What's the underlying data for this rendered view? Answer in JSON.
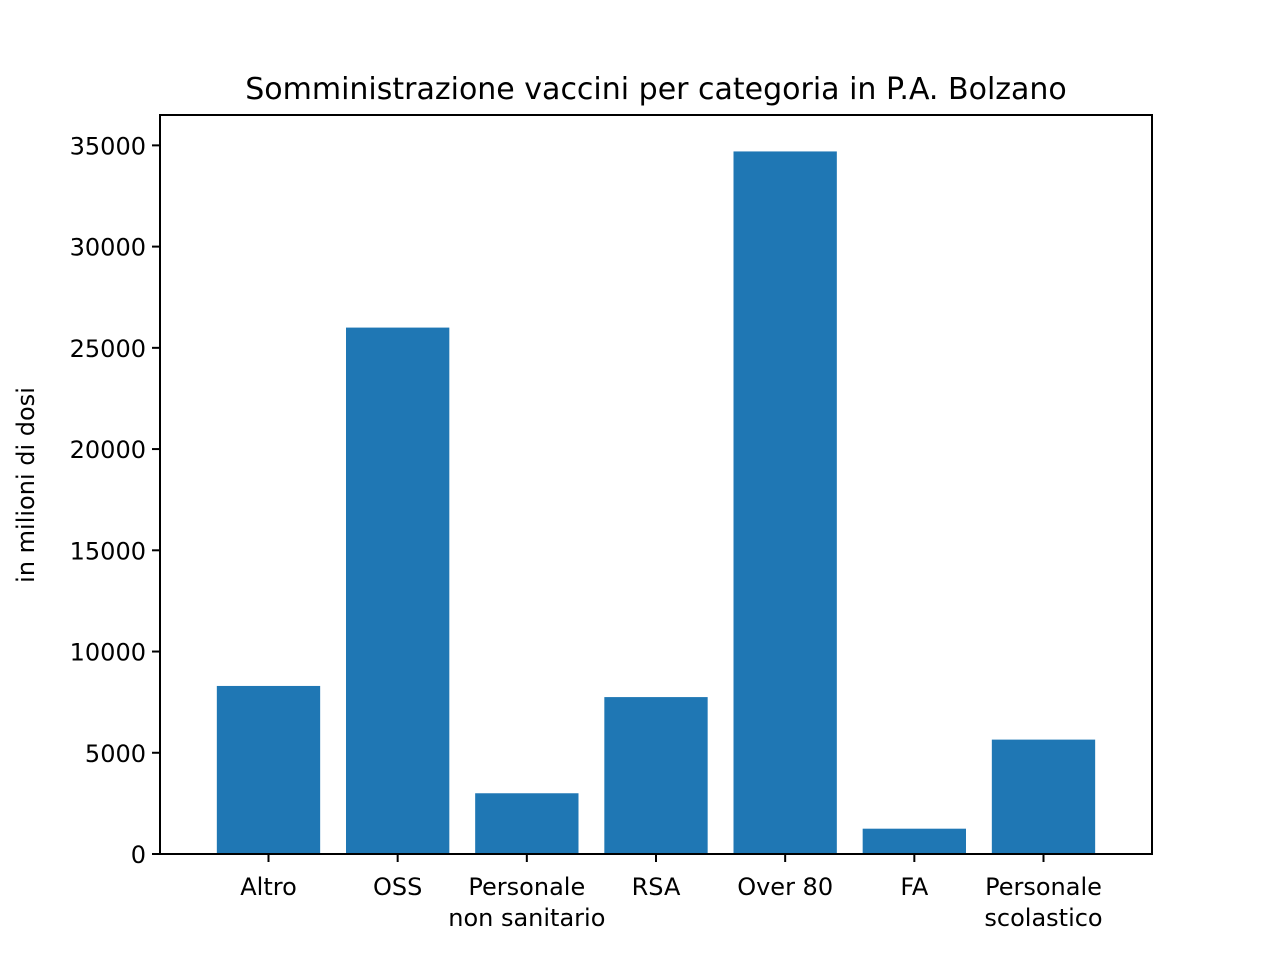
{
  "chart_data": {
    "type": "bar",
    "title": "Somministrazione vaccini per categoria in P.A. Bolzano",
    "xlabel": "",
    "ylabel": "in milioni di dosi",
    "categories": [
      [
        "Altro"
      ],
      [
        "OSS"
      ],
      [
        "Personale",
        "non sanitario"
      ],
      [
        "RSA"
      ],
      [
        "Over 80"
      ],
      [
        "FA"
      ],
      [
        "Personale",
        "scolastico"
      ]
    ],
    "values": [
      8300,
      26000,
      3000,
      7750,
      34700,
      1250,
      5650
    ],
    "ylim": [
      0,
      36500
    ],
    "yticks": [
      0,
      5000,
      10000,
      15000,
      20000,
      25000,
      30000,
      35000
    ],
    "grid": false,
    "bar_color": "#1f77b4"
  }
}
